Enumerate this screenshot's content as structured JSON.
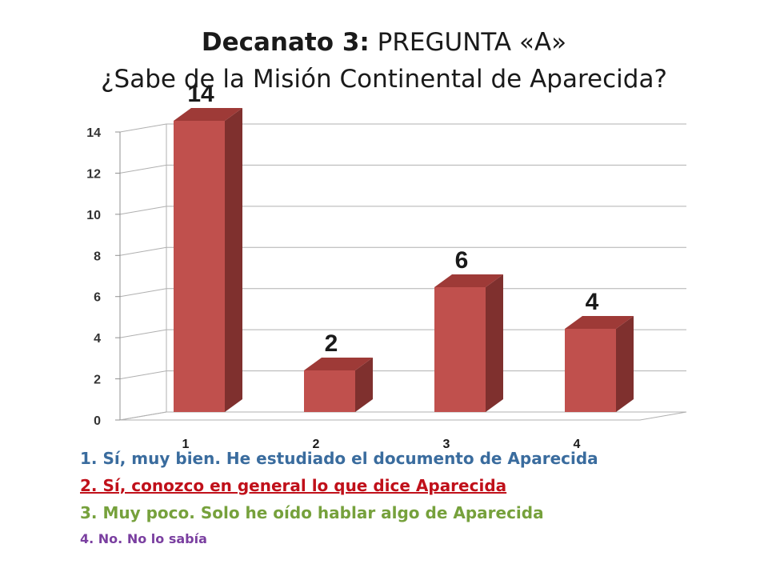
{
  "title": {
    "bold_part": "Decanato 3:",
    "rest_part": "PREGUNTA «A»",
    "subtitle": "¿Sabe de la Misión Continental de Aparecida?"
  },
  "chart_data": {
    "type": "bar",
    "categories": [
      "1",
      "2",
      "3",
      "4"
    ],
    "values": [
      14,
      2,
      6,
      4
    ],
    "data_labels": [
      "14",
      "2",
      "6",
      "4"
    ],
    "ylim": [
      0,
      14
    ],
    "yticks": [
      "0",
      "2",
      "4",
      "6",
      "8",
      "10",
      "12",
      "14"
    ],
    "grid": true,
    "colors": {
      "bar_front": "#c0504d",
      "bar_side": "#7f302e",
      "bar_top": "#9e3a37"
    }
  },
  "legend": [
    "1. Sí, muy bien. He estudiado el documento de Aparecida",
    "2. Sí, conozco en general lo que dice Aparecida",
    "3. Muy poco. Solo he oído hablar algo de Aparecida",
    "4. No. No lo sabía"
  ]
}
